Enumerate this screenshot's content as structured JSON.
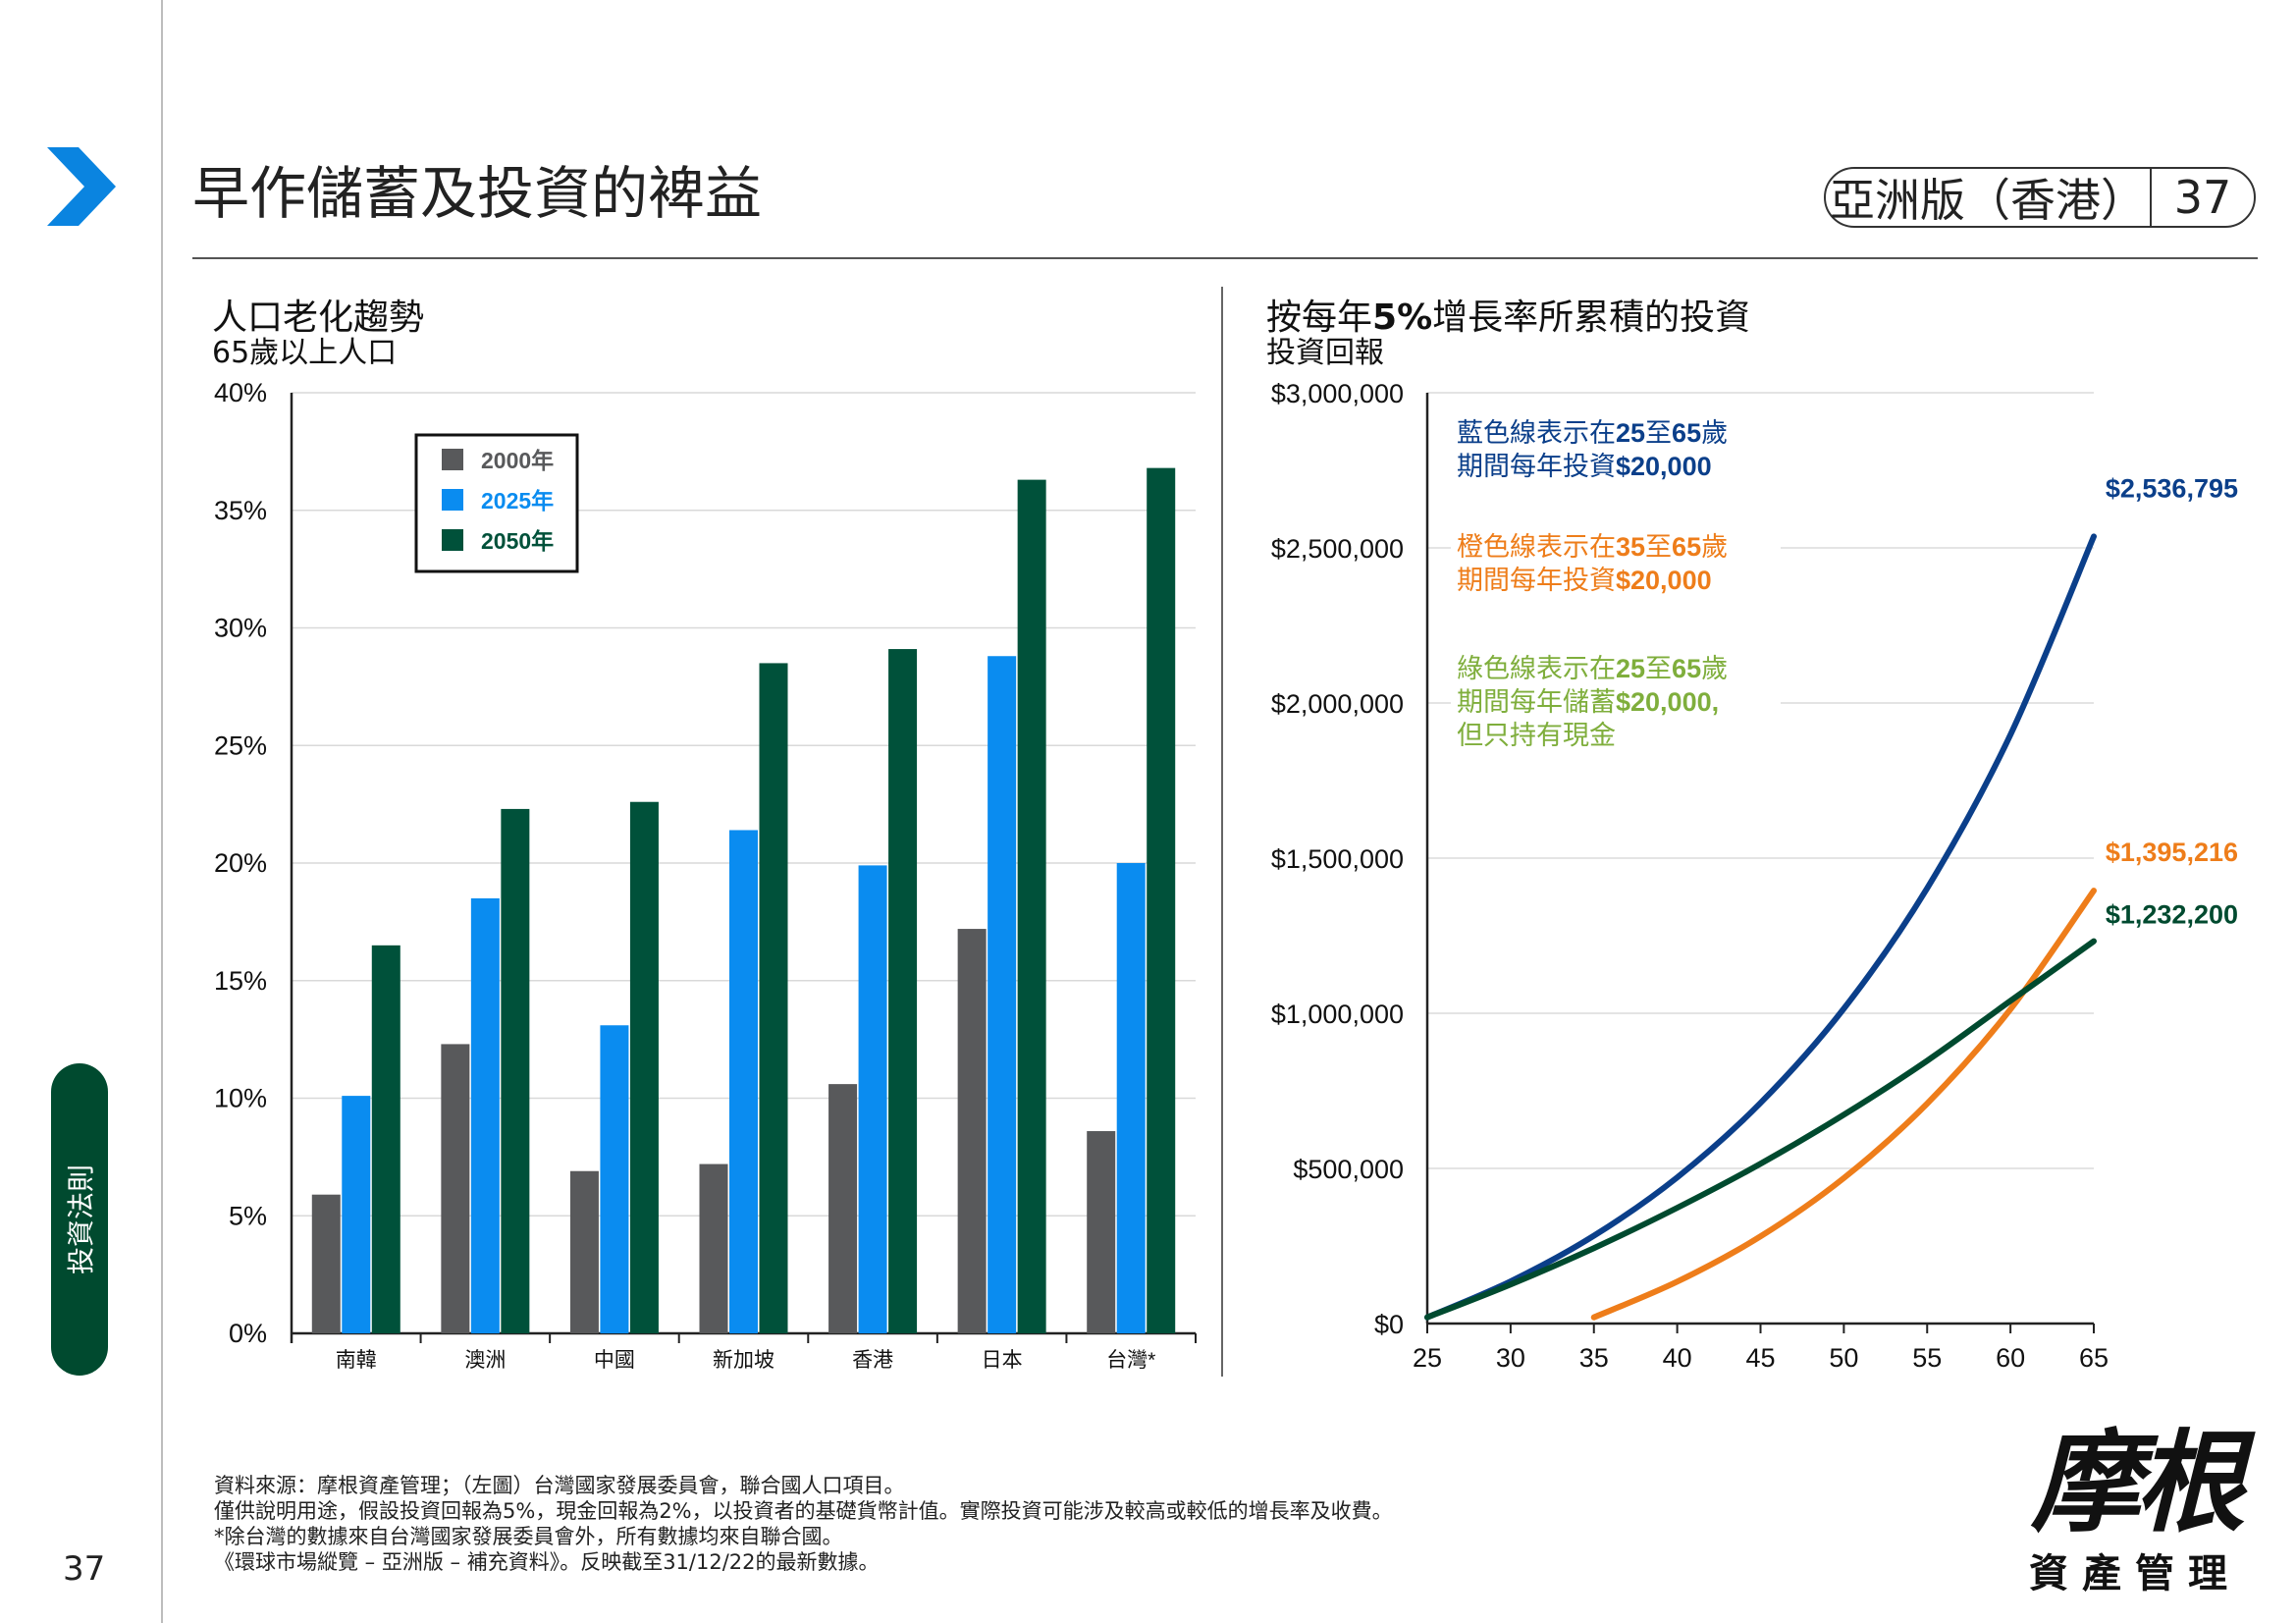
{
  "page": {
    "title": "早作儲蓄及投資的裨益",
    "edition": "亞洲版（香港）",
    "page_number": "37",
    "side_tab": "投資法則",
    "footer_page_number": "37",
    "colors": {
      "accent_blue": "#0a84e0",
      "dark_green": "#004a2f"
    }
  },
  "left_chart": {
    "title": "人口老化趨勢",
    "subtitle": "65歲以上人口",
    "chart_data": {
      "type": "bar",
      "categories": [
        "南韓",
        "澳洲",
        "中國",
        "新加坡",
        "香港",
        "日本",
        "台灣*"
      ],
      "series": [
        {
          "name": "2000年",
          "color": "#58595b",
          "values": [
            5.9,
            12.3,
            6.9,
            7.2,
            10.6,
            17.2,
            8.6
          ]
        },
        {
          "name": "2025年",
          "color": "#0a8cf0",
          "values": [
            10.1,
            18.5,
            13.1,
            21.4,
            19.9,
            28.8,
            20.0
          ]
        },
        {
          "name": "2050年",
          "color": "#00513a",
          "values": [
            16.5,
            22.3,
            22.6,
            28.5,
            29.1,
            36.3,
            36.8
          ]
        }
      ],
      "yticks": [
        "0%",
        "5%",
        "10%",
        "15%",
        "20%",
        "25%",
        "30%",
        "35%",
        "40%"
      ],
      "ylim": [
        0,
        40
      ],
      "grid": true,
      "legend_position": "top-left"
    }
  },
  "right_chart": {
    "title_parts": [
      "按每年",
      "5%",
      "增長率所累積的投資"
    ],
    "subtitle": "投資回報",
    "chart_data": {
      "type": "line",
      "xticks": [
        "25",
        "30",
        "35",
        "40",
        "45",
        "50",
        "55",
        "60",
        "65"
      ],
      "yticks": [
        "$0",
        "$500,000",
        "$1,000,000",
        "$1,500,000",
        "$2,000,000",
        "$2,500,000",
        "$3,000,000"
      ],
      "xlim": [
        25,
        65
      ],
      "ylim": [
        0,
        3000000
      ],
      "grid": true,
      "series": [
        {
          "key": "blue",
          "color": "#0b3f8a",
          "end_label": "$2,536,795",
          "x": [
            25,
            30,
            35,
            40,
            45,
            50,
            55,
            60,
            65
          ],
          "y": [
            20000,
            136000,
            283000,
            471000,
            711000,
            1015000,
            1403000,
            1898000,
            2536795
          ]
        },
        {
          "key": "orange",
          "color": "#ee7d1a",
          "end_label": "$1,395,216",
          "x": [
            35,
            40,
            45,
            50,
            55,
            60,
            65
          ],
          "y": [
            20000,
            135000,
            281000,
            469000,
            709000,
            1013000,
            1395216
          ]
        },
        {
          "key": "green",
          "color": "#004a2f",
          "end_label": "$1,232,200",
          "x": [
            25,
            30,
            35,
            40,
            45,
            50,
            55,
            60,
            65
          ],
          "y": [
            20000,
            126000,
            243000,
            373000,
            515000,
            673000,
            847000,
            1040000,
            1232200
          ]
        }
      ],
      "annotations": [
        {
          "key": "blue",
          "color": "#0b3f8a",
          "lines": [
            [
              {
                "t": "藍色線表示在",
                "b": false
              },
              {
                "t": "25",
                "b": true
              },
              {
                "t": "至",
                "b": false
              },
              {
                "t": "65",
                "b": true
              },
              {
                "t": "歲",
                "b": false
              }
            ],
            [
              {
                "t": "期間每年投資",
                "b": false
              },
              {
                "t": "$20,000",
                "b": true
              }
            ]
          ]
        },
        {
          "key": "orange",
          "color": "#ee7d1a",
          "lines": [
            [
              {
                "t": "橙色線表示在",
                "b": false
              },
              {
                "t": "35",
                "b": true
              },
              {
                "t": "至",
                "b": false
              },
              {
                "t": "65",
                "b": true
              },
              {
                "t": "歲",
                "b": false
              }
            ],
            [
              {
                "t": "期間每年投資",
                "b": false
              },
              {
                "t": "$20,000",
                "b": true
              }
            ]
          ]
        },
        {
          "key": "lightgreen",
          "color": "#7fae3c",
          "lines": [
            [
              {
                "t": "綠色線表示在",
                "b": false
              },
              {
                "t": "25",
                "b": true
              },
              {
                "t": "至",
                "b": false
              },
              {
                "t": "65",
                "b": true
              },
              {
                "t": "歲",
                "b": false
              }
            ],
            [
              {
                "t": "期間每年儲蓄",
                "b": false
              },
              {
                "t": "$20,000,",
                "b": true
              }
            ],
            [
              {
                "t": "但只持有現金",
                "b": false
              }
            ]
          ]
        }
      ]
    }
  },
  "footnotes": [
    "資料來源：摩根資產管理；（左圖）台灣國家發展委員會，聯合國人口項目。",
    "僅供說明用途，假設投資回報為5%，現金回報為2%，以投資者的基礎貨幣計值。實際投資可能涉及較高或較低的增長率及收費。",
    "*除台灣的數據來自台灣國家發展委員會外，所有數據均來自聯合國。",
    "《環球市場縱覽 – 亞洲版 – 補充資料》。反映截至31/12/22的最新數據。"
  ],
  "logo": {
    "main": "摩根",
    "sub": "資產管理"
  }
}
